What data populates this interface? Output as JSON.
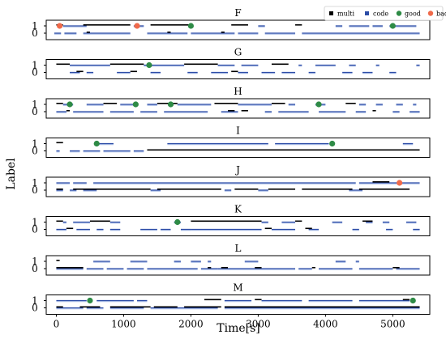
{
  "chart_data": {
    "type": "timeline",
    "xlabel": "Time[s]",
    "ylabel": "Label",
    "xlim": [
      -150,
      5550
    ],
    "xticks": [
      0,
      1000,
      2000,
      3000,
      4000,
      5000
    ],
    "xtick_labels": [
      "0",
      "1000",
      "2000",
      "3000",
      "4000",
      "5000"
    ],
    "yticks": [
      0,
      1
    ],
    "ytick_labels": [
      "0",
      "1"
    ],
    "colors": {
      "multi_hi": "#000000",
      "multi_lo": "#444444",
      "code": "#2b4ba6",
      "code_light": "#a9bce6",
      "good": "#2e8b46",
      "bad": "#f06a4a"
    },
    "legend": {
      "position": "top-right",
      "items": [
        {
          "label": "multi",
          "kind": "square",
          "color": "#000000"
        },
        {
          "label": "code",
          "kind": "square",
          "color": "#2b4ba6"
        },
        {
          "label": "good",
          "kind": "dot",
          "color": "#2e8b46"
        },
        {
          "label": "bad",
          "kind": "dot",
          "color": "#f06a4a"
        }
      ]
    },
    "panels": [
      {
        "title": "F",
        "multi_high": [
          [
            0,
            100
          ],
          [
            400,
            1100
          ],
          [
            1400,
            2000
          ],
          [
            2600,
            2850
          ],
          [
            3550,
            3650
          ]
        ],
        "multi_low": [
          [
            450,
            500
          ],
          [
            1650,
            1700
          ],
          [
            2450,
            2500
          ]
        ],
        "code_high": [
          [
            100,
            450
          ],
          [
            1150,
            1300
          ],
          [
            3000,
            3100
          ],
          [
            4150,
            4250
          ],
          [
            4350,
            4650
          ],
          [
            4700,
            4850
          ],
          [
            4950,
            5350
          ]
        ],
        "code_low": [
          [
            -30,
            70
          ],
          [
            120,
            300
          ],
          [
            400,
            1100
          ],
          [
            1350,
            1950
          ],
          [
            2000,
            2650
          ],
          [
            2700,
            3000
          ],
          [
            3100,
            3550
          ],
          [
            3650,
            5400
          ]
        ],
        "good": [
          [
            2000,
            1
          ],
          [
            5000,
            1
          ]
        ],
        "bad": [
          [
            50,
            1
          ],
          [
            1200,
            1
          ]
        ]
      },
      {
        "title": "G",
        "multi_high": [
          [
            0,
            200
          ],
          [
            800,
            1300
          ],
          [
            1900,
            2400
          ],
          [
            3200,
            3450
          ]
        ],
        "multi_low": [
          [
            300,
            400
          ],
          [
            1100,
            1200
          ],
          [
            2600,
            2700
          ]
        ],
        "code_high": [
          [
            200,
            800
          ],
          [
            1300,
            1900
          ],
          [
            2400,
            2650
          ],
          [
            2750,
            3000
          ],
          [
            3600,
            3650
          ],
          [
            3850,
            4150
          ],
          [
            4350,
            4450
          ],
          [
            4750,
            4800
          ],
          [
            5350,
            5400
          ]
        ],
        "code_low": [
          [
            200,
            350
          ],
          [
            450,
            550
          ],
          [
            900,
            1100
          ],
          [
            1400,
            1550
          ],
          [
            1950,
            2100
          ],
          [
            2300,
            2550
          ],
          [
            2700,
            2850
          ],
          [
            3050,
            3250
          ],
          [
            3350,
            3550
          ],
          [
            3750,
            3850
          ],
          [
            4250,
            4400
          ],
          [
            4550,
            4700
          ],
          [
            4950,
            5050
          ]
        ],
        "good": [
          [
            1380,
            1
          ]
        ],
        "bad": []
      },
      {
        "title": "H",
        "multi_high": [
          [
            0,
            100
          ],
          [
            700,
            900
          ],
          [
            1500,
            1800
          ],
          [
            2350,
            2700
          ],
          [
            3200,
            3400
          ],
          [
            4300,
            4450
          ]
        ],
        "multi_low": [
          [
            150,
            200
          ],
          [
            2550,
            2650
          ],
          [
            2750,
            2850
          ],
          [
            4700,
            4750
          ]
        ],
        "code_high": [
          [
            100,
            250
          ],
          [
            450,
            700
          ],
          [
            950,
            1150
          ],
          [
            1350,
            1500
          ],
          [
            1800,
            2300
          ],
          [
            2700,
            3200
          ],
          [
            3450,
            3550
          ],
          [
            3850,
            4000
          ],
          [
            4500,
            4600
          ],
          [
            4750,
            4850
          ],
          [
            5050,
            5150
          ],
          [
            5300,
            5350
          ]
        ],
        "code_low": [
          [
            0,
            150
          ],
          [
            250,
            700
          ],
          [
            800,
            1150
          ],
          [
            1250,
            1500
          ],
          [
            1600,
            2250
          ],
          [
            2450,
            2700
          ],
          [
            3100,
            3200
          ],
          [
            3300,
            3750
          ],
          [
            3900,
            4300
          ],
          [
            4450,
            4600
          ],
          [
            5000,
            5100
          ],
          [
            5250,
            5400
          ]
        ],
        "good": [
          [
            200,
            1
          ],
          [
            1180,
            1
          ],
          [
            1700,
            1
          ],
          [
            3900,
            1
          ]
        ],
        "bad": []
      },
      {
        "title": "I",
        "multi_high": [
          [
            0,
            100
          ]
        ],
        "multi_low": [
          [
            1350,
            5400
          ]
        ],
        "code_high": [
          [
            600,
            850
          ],
          [
            1650,
            3150
          ],
          [
            3250,
            4050
          ],
          [
            5150,
            5300
          ]
        ],
        "code_low": [
          [
            0,
            50
          ],
          [
            200,
            350
          ],
          [
            400,
            650
          ],
          [
            700,
            1100
          ],
          [
            1150,
            1300
          ]
        ],
        "good": [
          [
            600,
            1
          ],
          [
            4100,
            1
          ]
        ],
        "bad": []
      },
      {
        "title": "J",
        "multi_high": [
          [
            4700,
            4950
          ]
        ],
        "multi_low": [
          [
            0,
            100
          ],
          [
            250,
            1400
          ],
          [
            1500,
            2450
          ],
          [
            2650,
            3000
          ],
          [
            3150,
            3550
          ],
          [
            3650,
            4400
          ],
          [
            4500,
            5250
          ]
        ],
        "code_high": [
          [
            0,
            200
          ],
          [
            250,
            450
          ],
          [
            550,
            4450
          ],
          [
            4500,
            5400
          ]
        ],
        "code_low": [
          [
            0,
            100
          ],
          [
            200,
            300
          ],
          [
            400,
            600
          ],
          [
            1400,
            1550
          ],
          [
            2500,
            2600
          ],
          [
            3000,
            3150
          ],
          [
            4350,
            4550
          ]
        ],
        "good": [],
        "bad": [
          [
            5100,
            1
          ]
        ]
      },
      {
        "title": "K",
        "multi_high": [
          [
            0,
            100
          ],
          [
            500,
            800
          ],
          [
            2000,
            3050
          ],
          [
            3550,
            3650
          ],
          [
            4550,
            4700
          ]
        ],
        "multi_low": [
          [
            150,
            250
          ],
          [
            3100,
            3200
          ],
          [
            3700,
            3800
          ]
        ],
        "code_high": [
          [
            100,
            150
          ],
          [
            250,
            500
          ],
          [
            800,
            950
          ],
          [
            1750,
            1850
          ],
          [
            3050,
            3150
          ],
          [
            3350,
            3550
          ],
          [
            4100,
            4250
          ],
          [
            4600,
            4700
          ],
          [
            4850,
            4950
          ],
          [
            5200,
            5350
          ]
        ],
        "code_low": [
          [
            0,
            150
          ],
          [
            300,
            500
          ],
          [
            600,
            700
          ],
          [
            800,
            950
          ],
          [
            1250,
            1500
          ],
          [
            1550,
            1700
          ],
          [
            1850,
            2000
          ],
          [
            2000,
            3050
          ],
          [
            3200,
            3550
          ],
          [
            3750,
            3900
          ],
          [
            4400,
            4500
          ],
          [
            4900,
            5000
          ],
          [
            5300,
            5400
          ]
        ],
        "good": [
          [
            1800,
            1
          ]
        ],
        "bad": []
      },
      {
        "title": "L",
        "multi_high": [
          [
            0,
            50
          ]
        ],
        "multi_low": [
          [
            0,
            400
          ],
          [
            2250,
            2300
          ],
          [
            2450,
            2550
          ],
          [
            2950,
            3050
          ],
          [
            3800,
            3850
          ],
          [
            5000,
            5100
          ]
        ],
        "code_high": [
          [
            550,
            800
          ],
          [
            1100,
            1350
          ],
          [
            1750,
            1850
          ],
          [
            2000,
            2150
          ],
          [
            2250,
            2300
          ],
          [
            2800,
            3000
          ],
          [
            4150,
            4300
          ],
          [
            4450,
            4500
          ]
        ],
        "code_low": [
          [
            0,
            400
          ],
          [
            450,
            700
          ],
          [
            750,
            1000
          ],
          [
            1050,
            1300
          ],
          [
            1350,
            1700
          ],
          [
            1700,
            2100
          ],
          [
            2150,
            2400
          ],
          [
            2400,
            3550
          ],
          [
            3600,
            3800
          ],
          [
            3900,
            4400
          ],
          [
            4500,
            5000
          ],
          [
            5050,
            5400
          ]
        ],
        "good": [],
        "bad": []
      },
      {
        "title": "M",
        "multi_high": [
          [
            2200,
            2450
          ],
          [
            2950,
            3050
          ],
          [
            5150,
            5250
          ]
        ],
        "multi_low": [
          [
            0,
            100
          ],
          [
            350,
            650
          ],
          [
            800,
            1400
          ],
          [
            1450,
            1800
          ],
          [
            1900,
            2450
          ],
          [
            2500,
            5400
          ]
        ],
        "code_high": [
          [
            0,
            450
          ],
          [
            600,
            1150
          ],
          [
            1200,
            1350
          ],
          [
            2500,
            2900
          ],
          [
            3050,
            3650
          ],
          [
            3750,
            4400
          ],
          [
            4500,
            5250
          ]
        ],
        "code_low": [
          [
            0,
            400
          ],
          [
            450,
            700
          ],
          [
            800,
            1300
          ],
          [
            1400,
            2400
          ],
          [
            2500,
            5400
          ]
        ],
        "good": [
          [
            500,
            1
          ],
          [
            5300,
            1
          ]
        ],
        "bad": []
      }
    ]
  }
}
